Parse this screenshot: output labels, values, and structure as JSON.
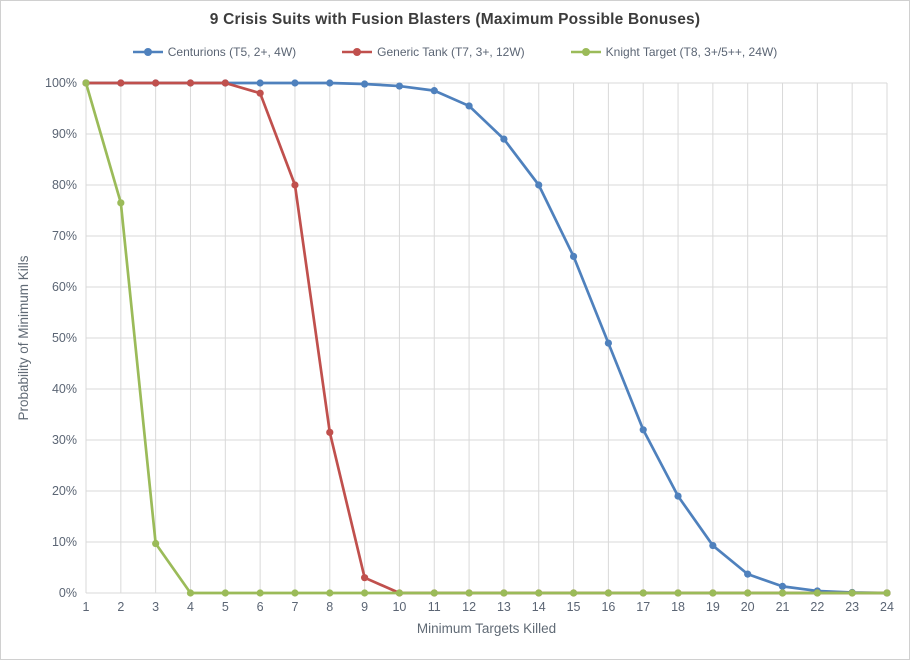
{
  "chart_data": {
    "type": "line",
    "title": "9 Crisis Suits with Fusion Blasters (Maximum Possible Bonuses)",
    "xlabel": "Minimum Targets Killed",
    "ylabel": "Probability of Minimum Kills",
    "x": [
      1,
      2,
      3,
      4,
      5,
      6,
      7,
      8,
      9,
      10,
      11,
      12,
      13,
      14,
      15,
      16,
      17,
      18,
      19,
      20,
      21,
      22,
      23,
      24
    ],
    "ylim": [
      0,
      100
    ],
    "y_tick_step": 10,
    "y_tick_labels": [
      "0%",
      "10%",
      "20%",
      "30%",
      "40%",
      "50%",
      "60%",
      "70%",
      "80%",
      "90%",
      "100%"
    ],
    "grid": true,
    "legend_position": "top",
    "series": [
      {
        "name": "Centurions (T5, 2+, 4W)",
        "color": "#4F81BD",
        "values": [
          100,
          100,
          100,
          100,
          100,
          100,
          100,
          100,
          99.8,
          99.4,
          98.5,
          95.5,
          89,
          80,
          66,
          49,
          32,
          19,
          9.3,
          3.7,
          1.3,
          0.4,
          0.1,
          0
        ]
      },
      {
        "name": "Generic Tank (T7, 3+, 12W)",
        "color": "#C0504D",
        "values": [
          100,
          100,
          100,
          100,
          100,
          98,
          80,
          31.5,
          3,
          0,
          0,
          0,
          0,
          0,
          0,
          0,
          0,
          0,
          0,
          0,
          0,
          0,
          0,
          0
        ]
      },
      {
        "name": "Knight Target (T8, 3+/5++, 24W)",
        "color": "#9BBB59",
        "values": [
          100,
          76.5,
          9.7,
          0,
          0,
          0,
          0,
          0,
          0,
          0,
          0,
          0,
          0,
          0,
          0,
          0,
          0,
          0,
          0,
          0,
          0,
          0,
          0,
          0
        ]
      }
    ]
  },
  "style": {
    "grid_color": "#d9d9d9",
    "tick_label_color": "#5b6574",
    "axis_title_color": "#606a75",
    "border_color": "#d0d0d0"
  }
}
